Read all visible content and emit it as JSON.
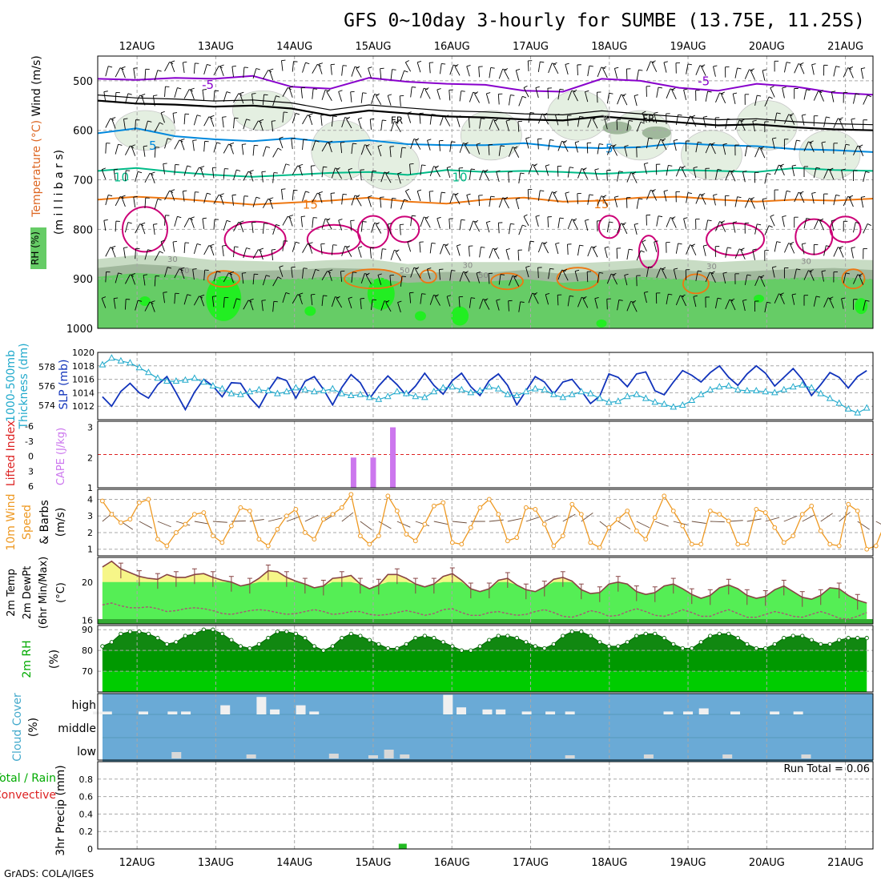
{
  "title": "GFS 0~10day 3-hourly for SUMBE (13.75E, 11.25S)",
  "credit": "GrADS: COLA/IGES",
  "run_total_text": "Run Total = 0.06",
  "colors": {
    "grid": "#a8a8a8",
    "rh_light": "#e4efe1",
    "rh_mid": "#c8dcc4",
    "rh_dark": "#a0b89c",
    "rh_green": "#66cc66",
    "rh_bright": "#22ee22",
    "isotherm_m5": "#8800cc",
    "isotherm_freeze": "#000000",
    "isotherm_5": "#0088dd",
    "isotherm_10": "#00bb88",
    "isotherm_15": "#ee7711",
    "isotherm_20": "#cc0077",
    "slp": "#1133bb",
    "thickness": "#22aacc",
    "cape": "#cc77ee",
    "lifted_index": "#dd2222",
    "wind10m": "#ee9922",
    "temp_fill": "#55ee55",
    "temp_line": "#884444",
    "temp_warm": "#f6f688",
    "dew_band": "#33aa33",
    "rh2m_dark": "#118811",
    "rh2m_light": "#00cc00",
    "cloud_bg": "#6aaad6",
    "cloud_box": "#f0f0f0",
    "precip": "#22bb22"
  },
  "chart_data": [
    {
      "id": "upper_air",
      "type": "contour",
      "ylabel_parts": [
        "Wind",
        "(m/s)",
        "Temperature",
        "(°C)",
        "RH",
        "(%)"
      ],
      "ylabel_units": "(m i l l i b a r s)",
      "x_ticks": [
        "12AUG",
        "13AUG",
        "14AUG",
        "15AUG",
        "16AUG",
        "17AUG",
        "18AUG",
        "19AUG",
        "20AUG",
        "21AUG"
      ],
      "y_ticks": [
        500,
        600,
        700,
        800,
        900,
        1000
      ],
      "ylim": [
        450,
        1000
      ],
      "isotherm_labels": [
        "-5",
        "-5",
        "FR",
        "FR",
        "5",
        "5",
        "10",
        "10",
        "15",
        "15"
      ],
      "rh_labels": [
        "30",
        "30",
        "30",
        "50",
        "50",
        "50",
        "30",
        "30"
      ],
      "isotherms": [
        {
          "label": "-5",
          "pressure": [
            496,
            498,
            494,
            496,
            490,
            512,
            516,
            494,
            502,
            506,
            508,
            520,
            522,
            496,
            500,
            514,
            520,
            506,
            512,
            524,
            528
          ],
          "color_key": "isotherm_m5"
        },
        {
          "label": "FR",
          "pressure": [
            540,
            546,
            548,
            552,
            550,
            556,
            570,
            560,
            566,
            572,
            574,
            578,
            580,
            572,
            578,
            584,
            590,
            588,
            594,
            598,
            600
          ],
          "color_key": "isotherm_freeze"
        },
        {
          "label": "5",
          "pressure": [
            606,
            596,
            612,
            618,
            622,
            616,
            624,
            620,
            628,
            630,
            630,
            626,
            634,
            636,
            634,
            626,
            630,
            632,
            638,
            640,
            644
          ],
          "color_key": "isotherm_5"
        },
        {
          "label": "10",
          "pressure": [
            682,
            676,
            684,
            690,
            694,
            690,
            686,
            684,
            690,
            680,
            684,
            682,
            684,
            688,
            684,
            680,
            682,
            684,
            676,
            680,
            682
          ],
          "color_key": "isotherm_10"
        },
        {
          "label": "15",
          "pressure": [
            740,
            734,
            738,
            744,
            750,
            746,
            742,
            736,
            744,
            748,
            740,
            736,
            744,
            742,
            736,
            734,
            740,
            744,
            740,
            742,
            738
          ],
          "color_key": "isotherm_15"
        }
      ],
      "rh_green_top": [
        896,
        888,
        892,
        904,
        902,
        900,
        896,
        898,
        908,
        904,
        906,
        900,
        908,
        902,
        896,
        900,
        906,
        902,
        898,
        896,
        900
      ],
      "rh_light_top": [
        860,
        852,
        854,
        862,
        864,
        866,
        862,
        860,
        870,
        866,
        866,
        866,
        870,
        866,
        862,
        860,
        866,
        862,
        860,
        860,
        862
      ]
    },
    {
      "id": "slp_thickness",
      "type": "line",
      "ylabel_left": [
        "1000-500mb",
        "Thickness",
        "(dm)"
      ],
      "ylabel_right": [
        "SLP",
        "(mb)"
      ],
      "y_left_ticks": [
        574,
        576,
        578
      ],
      "y_right_ticks": [
        1012,
        1014,
        1016,
        1018,
        1020
      ],
      "ylim_slp": [
        1010,
        1020
      ],
      "ylim_thk": [
        572.5,
        579.5
      ],
      "series": [
        {
          "name": "SLP",
          "values": [
            1013.4,
            1012.0,
            1014.2,
            1015.4,
            1014.0,
            1013.2,
            1015.2,
            1016.4,
            1014.0,
            1011.5,
            1014.1,
            1016.0,
            1015.0,
            1013.4,
            1015.5,
            1015.4,
            1013.3,
            1011.8,
            1014.3,
            1016.3,
            1015.8,
            1013.2,
            1015.7,
            1016.4,
            1014.5,
            1012.2,
            1014.8,
            1016.7,
            1015.5,
            1013.1,
            1015.0,
            1016.5,
            1015.2,
            1013.6,
            1015.0,
            1016.9,
            1015.1,
            1013.8,
            1015.8,
            1016.9,
            1014.9,
            1013.6,
            1015.8,
            1016.8,
            1015.1,
            1012.2,
            1014.3,
            1016.4,
            1015.6,
            1013.8,
            1015.6,
            1016.0,
            1014.3,
            1012.4,
            1013.5,
            1016.8,
            1016.3,
            1014.9,
            1016.8,
            1017.1,
            1014.3,
            1013.7,
            1015.6,
            1017.3,
            1016.6,
            1015.6,
            1017.0,
            1018.0,
            1016.3,
            1015.1,
            1016.8,
            1018.0,
            1016.9,
            1015.0,
            1016.3,
            1017.6,
            1016.0,
            1013.6,
            1015.2,
            1017.0,
            1016.3,
            1014.7,
            1016.4,
            1017.3
          ]
        },
        {
          "name": "Thickness",
          "values": [
            578.2,
            578.9,
            578.6,
            578.4,
            577.9,
            577.4,
            576.8,
            576.5,
            576.5,
            576.6,
            576.8,
            576.4,
            576.0,
            575.7,
            575.2,
            575.1,
            575.4,
            575.6,
            575.5,
            575.2,
            575.4,
            575.8,
            575.6,
            575.4,
            575.5,
            575.7,
            575.2,
            575.0,
            575.1,
            574.8,
            574.6,
            574.9,
            575.4,
            575.2,
            574.9,
            574.8,
            575.4,
            575.8,
            575.9,
            575.6,
            575.3,
            575.5,
            575.9,
            575.7,
            575.1,
            575.0,
            575.4,
            575.7,
            575.6,
            575.1,
            574.8,
            575.1,
            575.4,
            575.2,
            574.7,
            574.3,
            574.4,
            574.9,
            575.1,
            574.7,
            574.3,
            574.1,
            573.8,
            574.0,
            574.5,
            575.1,
            575.6,
            575.9,
            576.0,
            575.6,
            575.5,
            575.5,
            575.4,
            575.3,
            575.6,
            575.9,
            576.1,
            575.8,
            575.2,
            574.7,
            574.2,
            573.6,
            573.2,
            573.7
          ]
        }
      ]
    },
    {
      "id": "cape_li",
      "type": "bar",
      "ylabel_left": [
        "Lifted Index"
      ],
      "ylabel_right": [
        "CAPE",
        "(J/kg)"
      ],
      "y_left_ticks": [
        "-6",
        "-3",
        "0",
        "3",
        "6"
      ],
      "y_right_ticks": [
        1,
        2,
        3
      ],
      "ylim": [
        1,
        3.2
      ],
      "cape_bars": [
        {
          "day": 14.75,
          "value": 2.0
        },
        {
          "day": 15.0,
          "value": 2.0
        },
        {
          "day": 15.25,
          "value": 3.0
        }
      ]
    },
    {
      "id": "wind10m",
      "type": "line",
      "ylabel": [
        "10m Wind",
        "Speed",
        "& Barbs",
        "(m/s)"
      ],
      "y_ticks": [
        1,
        2,
        3,
        4
      ],
      "ylim": [
        0.6,
        4.6
      ],
      "values": [
        3.9,
        3.1,
        2.6,
        2.8,
        3.8,
        4.0,
        1.6,
        1.2,
        2.0,
        2.5,
        3.1,
        3.2,
        1.8,
        1.4,
        2.4,
        3.5,
        3.3,
        1.6,
        1.2,
        2.2,
        3.0,
        3.4,
        2.0,
        1.6,
        2.8,
        3.1,
        3.5,
        4.3,
        1.8,
        1.3,
        1.8,
        4.2,
        3.3,
        1.9,
        1.5,
        2.5,
        3.6,
        3.8,
        1.4,
        1.3,
        2.3,
        3.5,
        4.0,
        3.1,
        1.5,
        1.7,
        3.5,
        3.4,
        2.5,
        1.2,
        1.8,
        3.7,
        3.1,
        1.4,
        1.1,
        2.3,
        2.8,
        3.3,
        2.1,
        1.6,
        2.9,
        4.2,
        3.3,
        2.4,
        1.3,
        1.3,
        3.3,
        3.1,
        2.7,
        1.3,
        1.3,
        3.4,
        3.2,
        2.3,
        1.4,
        1.8,
        3.1,
        3.6,
        2.1,
        1.3,
        1.2,
        3.7,
        3.3,
        1.0,
        1.2,
        2.6
      ]
    },
    {
      "id": "temp2m",
      "type": "area",
      "ylabel": [
        "2m Temp",
        "2m DewPt",
        "(6hr Min/Max)",
        "(°C)"
      ],
      "y_ticks": [
        16,
        20
      ],
      "ylim": [
        15.6,
        22.6
      ],
      "temp": [
        21.6,
        22.2,
        21.4,
        21.0,
        20.6,
        20.4,
        20.3,
        20.8,
        20.5,
        20.5,
        20.8,
        20.9,
        20.5,
        20.2,
        20.0,
        19.6,
        19.8,
        20.4,
        21.2,
        21.1,
        20.5,
        20.1,
        19.8,
        19.4,
        19.6,
        20.4,
        20.5,
        20.7,
        19.8,
        19.3,
        19.7,
        20.8,
        20.8,
        20.4,
        19.8,
        19.5,
        19.8,
        20.6,
        20.9,
        20.2,
        19.3,
        19.0,
        19.3,
        20.2,
        20.4,
        19.7,
        19.2,
        19.0,
        19.5,
        20.3,
        20.5,
        20.1,
        19.2,
        18.8,
        18.9,
        19.8,
        20.0,
        19.8,
        19.0,
        18.7,
        18.9,
        19.6,
        19.8,
        19.3,
        18.7,
        18.3,
        18.6,
        19.4,
        19.7,
        19.3,
        18.6,
        18.3,
        18.5,
        19.2,
        19.6,
        19.0,
        18.4,
        18.2,
        18.6,
        19.4,
        19.3,
        18.6,
        18.1,
        17.8
      ],
      "dewpt": [
        17.6,
        17.8,
        17.5,
        17.3,
        17.3,
        17.4,
        17.2,
        16.9,
        17.0,
        17.2,
        17.3,
        17.2,
        17.0,
        16.7,
        16.6,
        16.8,
        17.0,
        17.1,
        17.0,
        16.8,
        16.6,
        16.7,
        16.9,
        17.1,
        16.9,
        16.6,
        16.7,
        16.9,
        16.9,
        16.6,
        16.5,
        16.6,
        16.8,
        17.0,
        16.8,
        16.5,
        16.7,
        17.1,
        17.2,
        16.8,
        16.5,
        16.5,
        16.8,
        16.9,
        16.7,
        16.5,
        16.6,
        16.9,
        17.1,
        16.8,
        16.4,
        16.3,
        16.6,
        17.0,
        16.8,
        16.4,
        16.5,
        16.9,
        17.2,
        16.9,
        16.5,
        16.4,
        16.7,
        17.1,
        16.8,
        16.4,
        16.4,
        16.8,
        17.1,
        16.7,
        16.3,
        16.3,
        16.6,
        16.9,
        16.7,
        16.4,
        16.3,
        16.6,
        16.9,
        16.6,
        16.2,
        16.1,
        16.4,
        16.8
      ]
    },
    {
      "id": "rh2m",
      "type": "area",
      "ylabel": [
        "2m RH",
        "(%)"
      ],
      "y_ticks": [
        70,
        80,
        90
      ],
      "ylim": [
        60,
        92
      ],
      "values": [
        82,
        84,
        88,
        89,
        89,
        88,
        86,
        83,
        84,
        87,
        88,
        90,
        90,
        88,
        85,
        82,
        81,
        83,
        86,
        89,
        89,
        88,
        86,
        82,
        80,
        82,
        86,
        88,
        87,
        85,
        83,
        81,
        81,
        83,
        86,
        87,
        86,
        84,
        82,
        80,
        80,
        82,
        85,
        87,
        87,
        86,
        84,
        82,
        81,
        83,
        87,
        89,
        89,
        87,
        84,
        82,
        82,
        84,
        87,
        88,
        88,
        86,
        83,
        81,
        81,
        84,
        87,
        88,
        88,
        86,
        83,
        81,
        81,
        83,
        86,
        87,
        87,
        85,
        83,
        83,
        85,
        86,
        86,
        86
      ]
    },
    {
      "id": "cloud",
      "type": "bar",
      "ylabel": [
        "Cloud Cover",
        "(%)"
      ],
      "y_ticks": [
        "high",
        "middle",
        "low"
      ],
      "high": [
        {
          "day": 11.5,
          "v": 0.1
        },
        {
          "day": 11.62,
          "v": 0.1
        },
        {
          "day": 12.08,
          "v": 0.1
        },
        {
          "day": 12.45,
          "v": 0.1
        },
        {
          "day": 12.62,
          "v": 0.1
        },
        {
          "day": 13.12,
          "v": 0.4
        },
        {
          "day": 13.58,
          "v": 0.8
        },
        {
          "day": 13.75,
          "v": 0.2
        },
        {
          "day": 14.08,
          "v": 0.4
        },
        {
          "day": 14.25,
          "v": 0.1
        },
        {
          "day": 15.95,
          "v": 0.9
        },
        {
          "day": 16.12,
          "v": 0.3
        },
        {
          "day": 16.45,
          "v": 0.2
        },
        {
          "day": 16.62,
          "v": 0.2
        },
        {
          "day": 16.95,
          "v": 0.1
        },
        {
          "day": 17.25,
          "v": 0.1
        },
        {
          "day": 17.5,
          "v": 0.1
        },
        {
          "day": 18.75,
          "v": 0.1
        },
        {
          "day": 19.0,
          "v": 0.1
        },
        {
          "day": 19.2,
          "v": 0.25
        },
        {
          "day": 19.6,
          "v": 0.1
        },
        {
          "day": 20.1,
          "v": 0.1
        },
        {
          "day": 20.4,
          "v": 0.1
        }
      ],
      "low": [
        {
          "day": 12.5,
          "v": 0.3
        },
        {
          "day": 13.45,
          "v": 0.15
        },
        {
          "day": 14.5,
          "v": 0.2
        },
        {
          "day": 15.0,
          "v": 0.1
        },
        {
          "day": 15.2,
          "v": 0.45
        },
        {
          "day": 15.4,
          "v": 0.15
        },
        {
          "day": 17.5,
          "v": 0.1
        },
        {
          "day": 18.5,
          "v": 0.15
        },
        {
          "day": 19.5,
          "v": 0.15
        },
        {
          "day": 20.5,
          "v": 0.15
        }
      ]
    },
    {
      "id": "precip",
      "type": "bar",
      "ylabel": [
        "3hr Precip (mm)"
      ],
      "side_labels": [
        "Total / Rain",
        "Convective"
      ],
      "y_ticks": [
        0,
        0.2,
        0.4,
        0.6,
        0.8
      ],
      "ylim": [
        0,
        1.0
      ],
      "bars": [
        {
          "day": 15.375,
          "value": 0.06
        }
      ]
    }
  ]
}
